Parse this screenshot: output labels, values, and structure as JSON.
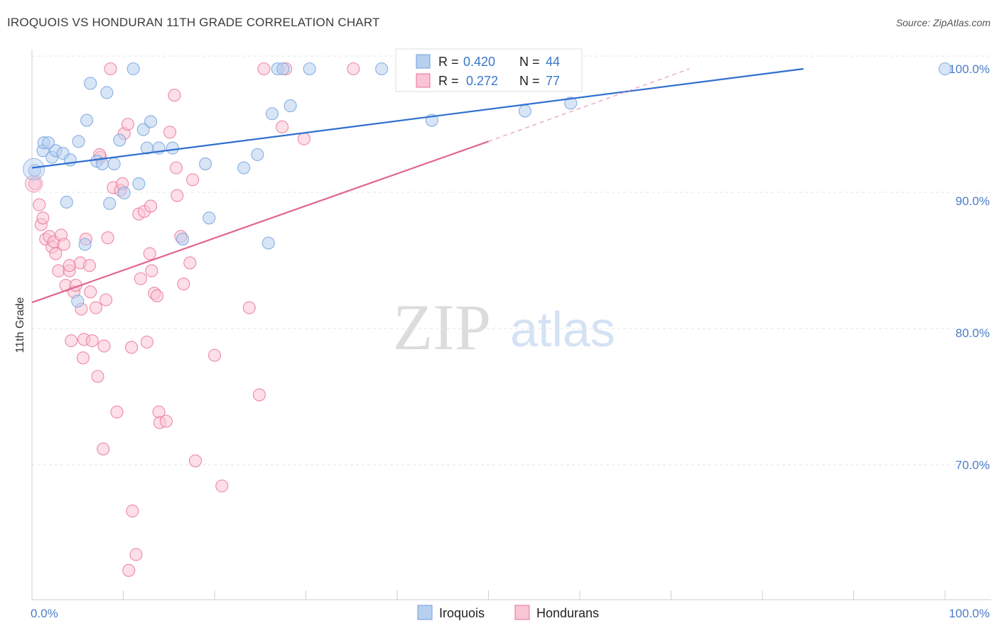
{
  "title": "IROQUOIS VS HONDURAN 11TH GRADE CORRELATION CHART",
  "source": "Source: ZipAtlas.com",
  "watermark": {
    "zip": "ZIP",
    "atlas": "atlas"
  },
  "legend_top": [
    {
      "r_label": "R =",
      "r_value": "0.420",
      "n_label": "N =",
      "n_value": "44"
    },
    {
      "r_label": "R =",
      "r_value": "0.272",
      "n_label": "N =",
      "n_value": "77"
    }
  ],
  "chart_data": {
    "type": "scatter",
    "title": "IROQUOIS VS HONDURAN 11TH GRADE CORRELATION CHART",
    "xlabel": "",
    "ylabel": "11th Grade",
    "xlim": [
      0,
      100
    ],
    "ylim": [
      61,
      101.5
    ],
    "x_tick_labels": [
      "0.0%",
      "100.0%"
    ],
    "y_ticks": [
      70,
      80,
      90,
      100
    ],
    "y_tick_labels": [
      "70.0%",
      "80.0%",
      "90.0%",
      "100.0%"
    ],
    "grid": true,
    "legend_position": "top-center",
    "series": [
      {
        "name": "Iroquois",
        "color": "#6f9fdc",
        "fill": "#b7d0f0",
        "r": 0.42,
        "n": 44,
        "trend": {
          "x0": 0,
          "y0": 92.5,
          "x1": 84.5,
          "y1": 100
        },
        "points": [
          [
            0.3,
            92.3
          ],
          [
            1.2,
            93.8
          ],
          [
            1.3,
            94.4
          ],
          [
            1.8,
            94.4
          ],
          [
            2.2,
            93.3
          ],
          [
            2.6,
            93.8
          ],
          [
            3.4,
            93.6
          ],
          [
            3.8,
            89.9
          ],
          [
            4.2,
            93.1
          ],
          [
            5.1,
            94.5
          ],
          [
            5.0,
            82.4
          ],
          [
            5.8,
            86.7
          ],
          [
            6.0,
            96.1
          ],
          [
            6.4,
            98.9
          ],
          [
            7.1,
            93.0
          ],
          [
            7.7,
            92.8
          ],
          [
            8.2,
            98.2
          ],
          [
            8.5,
            89.8
          ],
          [
            9.0,
            92.8
          ],
          [
            9.6,
            94.6
          ],
          [
            10.1,
            90.6
          ],
          [
            11.1,
            100
          ],
          [
            11.7,
            91.3
          ],
          [
            12.2,
            95.4
          ],
          [
            12.6,
            94.0
          ],
          [
            13.0,
            96.0
          ],
          [
            13.9,
            94.0
          ],
          [
            15.4,
            94.0
          ],
          [
            16.5,
            87.1
          ],
          [
            19.0,
            92.8
          ],
          [
            19.4,
            88.7
          ],
          [
            23.2,
            92.5
          ],
          [
            24.7,
            93.5
          ],
          [
            25.9,
            86.8
          ],
          [
            26.3,
            96.6
          ],
          [
            26.9,
            100
          ],
          [
            27.5,
            100
          ],
          [
            28.3,
            97.2
          ],
          [
            30.4,
            100
          ],
          [
            38.3,
            100
          ],
          [
            43.8,
            96.1
          ],
          [
            54.0,
            96.8
          ],
          [
            59.0,
            97.4
          ],
          [
            100,
            100
          ]
        ]
      },
      {
        "name": "Hondurans",
        "color": "#e86f97",
        "fill": "#f9c4d4",
        "r": 0.272,
        "n": 77,
        "trend": {
          "x0": 0,
          "y0": 82.3,
          "x1": 50,
          "y1": 94.5
        },
        "trend_extension": {
          "x0": 50,
          "y0": 94.5,
          "x1": 72,
          "y1": 100
        },
        "points": [
          [
            0.3,
            91.3
          ],
          [
            0.8,
            89.7
          ],
          [
            1.0,
            88.2
          ],
          [
            1.2,
            88.7
          ],
          [
            1.5,
            87.1
          ],
          [
            1.9,
            87.3
          ],
          [
            2.2,
            86.5
          ],
          [
            2.4,
            86.9
          ],
          [
            2.6,
            86.0
          ],
          [
            2.9,
            84.7
          ],
          [
            3.2,
            87.4
          ],
          [
            3.5,
            86.7
          ],
          [
            3.7,
            83.6
          ],
          [
            4.1,
            84.7
          ],
          [
            4.1,
            85.1
          ],
          [
            4.3,
            79.4
          ],
          [
            4.6,
            83.1
          ],
          [
            4.8,
            83.6
          ],
          [
            5.3,
            85.3
          ],
          [
            5.4,
            81.8
          ],
          [
            5.6,
            78.1
          ],
          [
            5.7,
            79.5
          ],
          [
            5.9,
            87.1
          ],
          [
            6.3,
            85.1
          ],
          [
            6.4,
            83.1
          ],
          [
            6.6,
            79.4
          ],
          [
            7.0,
            81.9
          ],
          [
            7.2,
            76.7
          ],
          [
            7.5,
            93.3
          ],
          [
            7.8,
            71.2
          ],
          [
            7.9,
            79.0
          ],
          [
            8.1,
            82.5
          ],
          [
            8.3,
            87.2
          ],
          [
            8.6,
            100
          ],
          [
            8.9,
            91.0
          ],
          [
            9.3,
            74.0
          ],
          [
            9.7,
            90.8
          ],
          [
            9.9,
            91.3
          ],
          [
            10.1,
            95.1
          ],
          [
            10.6,
            62.0
          ],
          [
            10.9,
            78.9
          ],
          [
            11.0,
            66.5
          ],
          [
            11.4,
            63.2
          ],
          [
            11.7,
            89.0
          ],
          [
            11.9,
            84.1
          ],
          [
            12.3,
            89.2
          ],
          [
            12.6,
            79.3
          ],
          [
            12.9,
            86.0
          ],
          [
            13.0,
            89.6
          ],
          [
            13.1,
            84.7
          ],
          [
            13.4,
            83.0
          ],
          [
            13.7,
            82.8
          ],
          [
            13.9,
            74.0
          ],
          [
            14.0,
            73.2
          ],
          [
            14.7,
            73.3
          ],
          [
            15.1,
            95.2
          ],
          [
            15.6,
            98.0
          ],
          [
            15.9,
            90.4
          ],
          [
            15.8,
            92.5
          ],
          [
            16.3,
            87.3
          ],
          [
            16.6,
            83.7
          ],
          [
            17.3,
            85.3
          ],
          [
            17.6,
            91.6
          ],
          [
            17.9,
            70.3
          ],
          [
            20.0,
            78.3
          ],
          [
            20.8,
            68.4
          ],
          [
            23.8,
            81.9
          ],
          [
            24.9,
            75.3
          ],
          [
            25.4,
            100
          ],
          [
            27.4,
            95.6
          ],
          [
            27.8,
            100
          ],
          [
            29.8,
            94.7
          ],
          [
            35.2,
            100
          ],
          [
            40.7,
            100
          ],
          [
            50.5,
            100
          ],
          [
            10.5,
            95.8
          ],
          [
            7.4,
            93.5
          ]
        ]
      }
    ]
  },
  "legend_bottom": [
    "Iroquois",
    "Hondurans"
  ]
}
